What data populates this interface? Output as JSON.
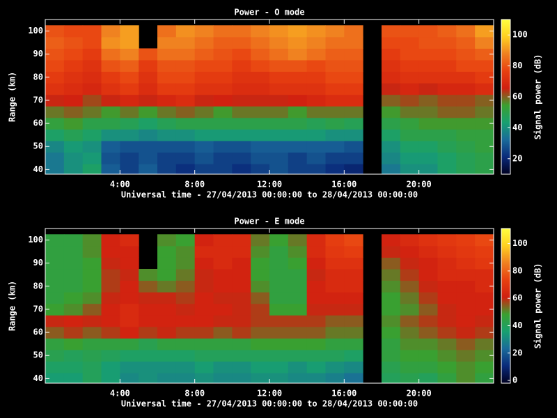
{
  "chart_data": [
    {
      "type": "heatmap",
      "title": "Power - O mode",
      "xlabel": "Universal time - 27/04/2013 00:00:00 to 28/04/2013 00:00:00",
      "ylabel": "Range (km)",
      "colorbar_label": "Signal power (dB)",
      "x": [
        0.5,
        1.5,
        2.5,
        3.5,
        4.5,
        5.5,
        6.5,
        7.5,
        8.5,
        9.5,
        10.5,
        11.5,
        12.5,
        13.5,
        14.5,
        15.5,
        16.5,
        17.5,
        18.5,
        19.5,
        20.5,
        21.5,
        22.5,
        23.5
      ],
      "y": [
        40,
        45,
        50,
        55,
        60,
        65,
        70,
        75,
        80,
        85,
        90,
        95,
        100
      ],
      "z": [
        [
          35,
          40,
          45,
          30,
          25,
          30,
          25,
          22,
          25,
          25,
          22,
          25,
          28,
          25,
          25,
          22,
          20,
          null,
          35,
          40,
          40,
          45,
          48,
          50
        ],
        [
          35,
          40,
          42,
          28,
          25,
          28,
          25,
          25,
          28,
          25,
          25,
          28,
          28,
          25,
          28,
          25,
          25,
          null,
          38,
          42,
          42,
          45,
          48,
          50
        ],
        [
          38,
          42,
          40,
          30,
          28,
          28,
          28,
          28,
          30,
          28,
          28,
          30,
          30,
          30,
          30,
          30,
          28,
          null,
          40,
          45,
          45,
          48,
          50,
          52
        ],
        [
          45,
          48,
          45,
          40,
          40,
          38,
          40,
          40,
          42,
          42,
          42,
          42,
          42,
          42,
          42,
          40,
          40,
          null,
          45,
          50,
          50,
          50,
          52,
          52
        ],
        [
          52,
          55,
          50,
          50,
          48,
          45,
          48,
          50,
          50,
          50,
          50,
          50,
          50,
          50,
          48,
          50,
          48,
          null,
          50,
          52,
          55,
          55,
          55,
          55
        ],
        [
          58,
          60,
          58,
          55,
          58,
          55,
          58,
          60,
          58,
          55,
          58,
          58,
          58,
          55,
          58,
          58,
          58,
          null,
          55,
          58,
          58,
          60,
          60,
          58
        ],
        [
          65,
          66,
          62,
          65,
          68,
          65,
          68,
          70,
          65,
          66,
          65,
          65,
          65,
          66,
          68,
          70,
          70,
          null,
          60,
          62,
          60,
          62,
          62,
          60
        ],
        [
          72,
          70,
          68,
          72,
          75,
          70,
          75,
          75,
          72,
          72,
          70,
          70,
          72,
          72,
          72,
          75,
          75,
          null,
          65,
          68,
          65,
          68,
          68,
          70
        ],
        [
          75,
          72,
          70,
          75,
          78,
          72,
          78,
          78,
          75,
          75,
          72,
          72,
          75,
          75,
          75,
          78,
          78,
          null,
          70,
          72,
          72,
          72,
          72,
          75
        ],
        [
          78,
          75,
          72,
          80,
          82,
          75,
          80,
          80,
          78,
          78,
          75,
          78,
          80,
          80,
          78,
          80,
          80,
          null,
          72,
          75,
          75,
          75,
          78,
          78
        ],
        [
          80,
          78,
          75,
          85,
          88,
          80,
          85,
          85,
          82,
          80,
          78,
          82,
          85,
          88,
          85,
          82,
          82,
          null,
          75,
          78,
          78,
          78,
          80,
          82
        ],
        [
          82,
          80,
          78,
          90,
          92,
          null,
          88,
          88,
          85,
          82,
          82,
          85,
          88,
          90,
          88,
          85,
          85,
          null,
          78,
          78,
          80,
          80,
          82,
          88
        ],
        [
          80,
          78,
          78,
          88,
          92,
          null,
          85,
          90,
          88,
          85,
          85,
          88,
          90,
          92,
          90,
          88,
          85,
          null,
          80,
          80,
          80,
          82,
          85,
          92
        ]
      ],
      "xlim": [
        0,
        24
      ],
      "ylim": [
        38,
        105
      ],
      "xticks": [
        {
          "value": 4,
          "label": "4:00"
        },
        {
          "value": 8,
          "label": "8:00"
        },
        {
          "value": 12,
          "label": "12:00"
        },
        {
          "value": 16,
          "label": "16:00"
        },
        {
          "value": 20,
          "label": "20:00"
        }
      ],
      "yticks": [
        40,
        50,
        60,
        70,
        80,
        90,
        100
      ],
      "zlim": [
        10,
        110
      ],
      "zticks": [
        20,
        40,
        60,
        80,
        100
      ],
      "colormap": [
        "#000020",
        "#0a2a7a",
        "#1a6a9a",
        "#18a070",
        "#3aa030",
        "#d02010",
        "#e84010",
        "#f08020",
        "#ffd020",
        "#ffff40"
      ]
    },
    {
      "type": "heatmap",
      "title": "Power - E mode",
      "xlabel": "Universal time - 27/04/2013 00:00:00 to 28/04/2013 00:00:00",
      "ylabel": "Range (km)",
      "colorbar_label": "Signal power (dB)",
      "x": [
        0.5,
        1.5,
        2.5,
        3.5,
        4.5,
        5.5,
        6.5,
        7.5,
        8.5,
        9.5,
        10.5,
        11.5,
        12.5,
        13.5,
        14.5,
        15.5,
        16.5,
        17.5,
        18.5,
        19.5,
        20.5,
        21.5,
        22.5,
        23.5
      ],
      "y": [
        40,
        45,
        50,
        55,
        60,
        65,
        70,
        75,
        80,
        85,
        90,
        95,
        100
      ],
      "z": [
        [
          35,
          35,
          40,
          35,
          30,
          32,
          30,
          30,
          32,
          30,
          30,
          32,
          32,
          30,
          30,
          28,
          25,
          null,
          40,
          42,
          40,
          45,
          50,
          45
        ],
        [
          38,
          38,
          40,
          35,
          32,
          32,
          32,
          32,
          35,
          32,
          32,
          35,
          35,
          32,
          35,
          32,
          30,
          null,
          42,
          45,
          45,
          48,
          50,
          48
        ],
        [
          42,
          40,
          42,
          40,
          38,
          38,
          38,
          38,
          40,
          40,
          40,
          40,
          40,
          40,
          40,
          40,
          38,
          null,
          45,
          48,
          48,
          50,
          52,
          50
        ],
        [
          45,
          48,
          45,
          45,
          45,
          42,
          45,
          45,
          45,
          45,
          45,
          48,
          48,
          48,
          48,
          45,
          45,
          null,
          45,
          50,
          50,
          52,
          55,
          52
        ],
        [
          55,
          58,
          55,
          58,
          62,
          58,
          60,
          58,
          58,
          55,
          58,
          55,
          55,
          55,
          55,
          52,
          52,
          null,
          48,
          52,
          55,
          58,
          60,
          58
        ],
        [
          60,
          62,
          60,
          62,
          65,
          62,
          62,
          62,
          62,
          60,
          60,
          58,
          58,
          58,
          58,
          55,
          55,
          null,
          50,
          55,
          58,
          60,
          62,
          60
        ],
        [
          48,
          50,
          55,
          62,
          65,
          62,
          62,
          60,
          62,
          62,
          60,
          58,
          48,
          48,
          60,
          60,
          60,
          null,
          48,
          50,
          55,
          60,
          62,
          62
        ],
        [
          45,
          48,
          50,
          60,
          62,
          60,
          60,
          58,
          62,
          60,
          60,
          55,
          45,
          45,
          62,
          62,
          62,
          null,
          48,
          52,
          58,
          62,
          62,
          62
        ],
        [
          45,
          45,
          48,
          58,
          62,
          55,
          52,
          55,
          60,
          62,
          62,
          50,
          45,
          45,
          62,
          65,
          65,
          null,
          50,
          55,
          60,
          62,
          62,
          65
        ],
        [
          45,
          45,
          48,
          58,
          60,
          50,
          48,
          52,
          60,
          62,
          62,
          48,
          45,
          45,
          60,
          65,
          65,
          null,
          52,
          58,
          62,
          65,
          65,
          65
        ],
        [
          45,
          45,
          48,
          60,
          62,
          null,
          48,
          50,
          62,
          65,
          62,
          48,
          45,
          48,
          62,
          68,
          68,
          null,
          55,
          60,
          62,
          65,
          68,
          70
        ],
        [
          45,
          45,
          50,
          62,
          62,
          null,
          48,
          50,
          65,
          65,
          65,
          50,
          45,
          50,
          65,
          70,
          72,
          null,
          60,
          62,
          65,
          68,
          70,
          72
        ],
        [
          45,
          45,
          50,
          62,
          65,
          null,
          50,
          48,
          62,
          65,
          65,
          52,
          48,
          52,
          65,
          72,
          75,
          null,
          62,
          65,
          68,
          70,
          72,
          75
        ]
      ],
      "xlim": [
        0,
        24
      ],
      "ylim": [
        38,
        105
      ],
      "xticks": [
        {
          "value": 4,
          "label": "4:00"
        },
        {
          "value": 8,
          "label": "8:00"
        },
        {
          "value": 12,
          "label": "12:00"
        },
        {
          "value": 16,
          "label": "16:00"
        },
        {
          "value": 20,
          "label": "20:00"
        }
      ],
      "yticks": [
        40,
        50,
        60,
        70,
        80,
        90,
        100
      ],
      "zlim": [
        -2,
        111
      ],
      "zticks": [
        0,
        20,
        40,
        60,
        80,
        100
      ],
      "colormap": [
        "#000020",
        "#0a2a7a",
        "#1a6a9a",
        "#18a070",
        "#3aa030",
        "#d02010",
        "#e84010",
        "#f08020",
        "#ffd020",
        "#ffff40"
      ]
    }
  ]
}
